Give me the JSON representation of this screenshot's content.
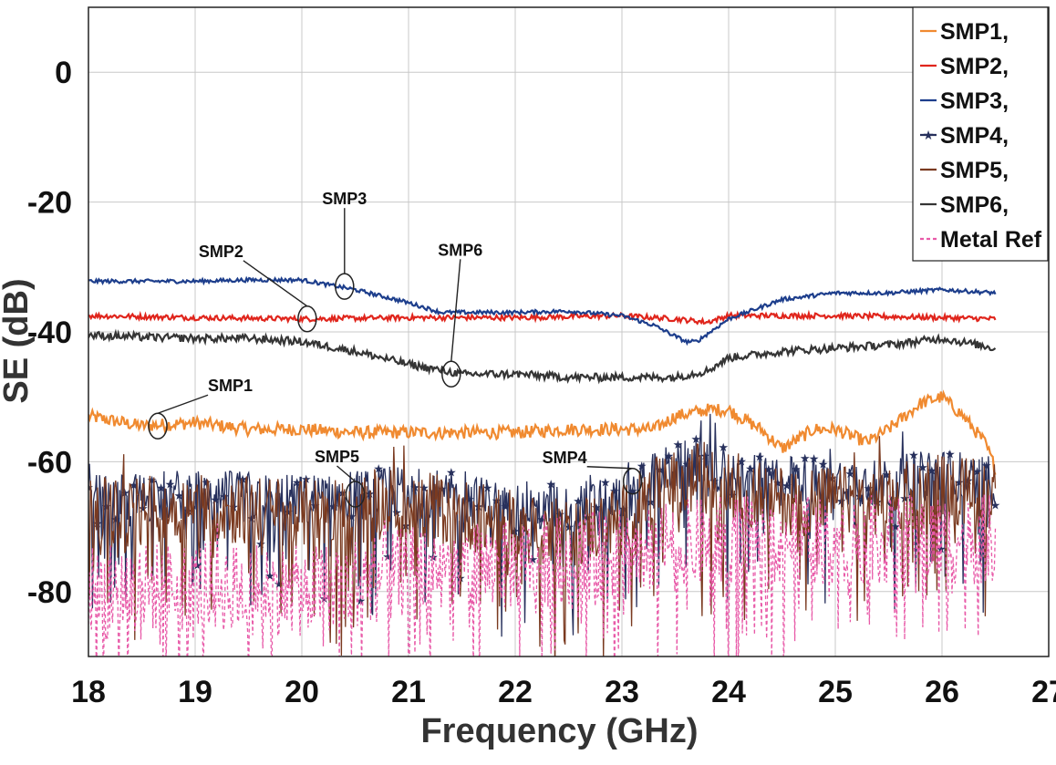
{
  "chart_data": {
    "type": "line",
    "title": "",
    "xlabel": "Frequency (GHz)",
    "ylabel": "SE (dB)",
    "xlim": [
      18,
      27
    ],
    "ylim": [
      -90,
      10
    ],
    "xticks": [
      18,
      19,
      20,
      21,
      22,
      23,
      24,
      25,
      26,
      27
    ],
    "yticks": [
      0,
      -20,
      -40,
      -60,
      -80
    ],
    "grid": true,
    "legend_position": "top-right",
    "series": [
      {
        "name": "SMP1,",
        "color": "#f08a30",
        "style": "noisy",
        "noise": 1.0,
        "x": [
          18,
          18.5,
          19,
          19.5,
          20,
          20.5,
          21,
          21.5,
          22,
          22.5,
          23,
          23.3,
          23.5,
          23.8,
          24,
          24.3,
          24.5,
          24.8,
          25,
          25.3,
          25.5,
          25.8,
          26,
          26.2,
          26.4,
          26.5
        ],
        "y": [
          -53,
          -54.5,
          -54,
          -55,
          -55,
          -55.5,
          -55.5,
          -55.5,
          -55.5,
          -55,
          -55,
          -55,
          -53,
          -52,
          -52,
          -55,
          -58,
          -55,
          -55,
          -57,
          -55,
          -51,
          -50,
          -53,
          -57,
          -61
        ]
      },
      {
        "name": "SMP2,",
        "color": "#e0251c",
        "style": "noisy",
        "noise": 0.4,
        "x": [
          18,
          19,
          20,
          21,
          22,
          23,
          23.5,
          23.8,
          24,
          25,
          26,
          26.5
        ],
        "y": [
          -37.5,
          -37.8,
          -38,
          -37.8,
          -37.8,
          -37.5,
          -38,
          -38.5,
          -37.5,
          -37.5,
          -37.8,
          -38
        ]
      },
      {
        "name": "SMP3,",
        "color": "#1d3e8c",
        "style": "noisy",
        "noise": 0.3,
        "x": [
          18,
          19,
          19.5,
          20,
          20.5,
          21,
          21.3,
          22,
          22.5,
          23,
          23.3,
          23.6,
          23.7,
          24,
          24.5,
          25,
          25.5,
          26,
          26.5
        ],
        "y": [
          -32.2,
          -32.2,
          -32,
          -32,
          -33.5,
          -35.5,
          -37,
          -37,
          -36.8,
          -37.5,
          -39,
          -41.5,
          -41.5,
          -38,
          -35,
          -34,
          -34,
          -33.5,
          -34
        ]
      },
      {
        "name": "SMP4,",
        "color": "#27305c",
        "style": "spiky",
        "noise": 4.0,
        "marker": "star",
        "x": [
          18,
          19,
          20,
          21,
          22,
          22.5,
          23,
          23.3,
          23.8,
          24,
          24.5,
          25,
          25.5,
          26,
          26.5
        ],
        "y": [
          -66,
          -65,
          -66,
          -64.5,
          -67,
          -67,
          -66,
          -62,
          -60,
          -62,
          -63,
          -63,
          -63,
          -62,
          -63
        ]
      },
      {
        "name": "SMP5,",
        "color": "#7a3a20",
        "style": "spiky",
        "noise": 5.5,
        "x": [
          18,
          19,
          20,
          21,
          22,
          22.5,
          23,
          23.3,
          23.8,
          24,
          24.5,
          25,
          25.5,
          26,
          26.5
        ],
        "y": [
          -68,
          -67,
          -68,
          -66,
          -70,
          -71,
          -69,
          -65,
          -62,
          -64,
          -66,
          -66,
          -66,
          -64,
          -65
        ]
      },
      {
        "name": "SMP6,",
        "color": "#353535",
        "style": "noisy",
        "noise": 0.6,
        "x": [
          18,
          18.5,
          19,
          19.5,
          20,
          20.5,
          21,
          21.5,
          22,
          22.5,
          23,
          23.5,
          23.8,
          24,
          24.5,
          25,
          25.5,
          26,
          26.5
        ],
        "y": [
          -40.5,
          -40.8,
          -41,
          -41,
          -41.5,
          -43,
          -45,
          -46.5,
          -46.5,
          -47,
          -47,
          -47,
          -46,
          -44,
          -43,
          -42.5,
          -42,
          -41,
          -42.5
        ]
      },
      {
        "name": "Metal Ref",
        "color": "#e85aa8",
        "style": "spiky-dashed",
        "noise": 7.0,
        "x": [
          18,
          19,
          20,
          21,
          22,
          23,
          24,
          25,
          26,
          26.5
        ],
        "y": [
          -80,
          -79,
          -80,
          -77,
          -76,
          -74,
          -72,
          -72,
          -72,
          -72
        ]
      }
    ],
    "annotations": [
      {
        "text": "SMP1",
        "x": 18.65,
        "y": -54.5
      },
      {
        "text": "SMP2",
        "x": 20.05,
        "y": -38
      },
      {
        "text": "SMP3",
        "x": 20.4,
        "y": -33
      },
      {
        "text": "SMP6",
        "x": 21.4,
        "y": -46.5
      },
      {
        "text": "SMP5",
        "x": 20.5,
        "y": -65
      },
      {
        "text": "SMP4",
        "x": 23.1,
        "y": -63
      }
    ]
  }
}
